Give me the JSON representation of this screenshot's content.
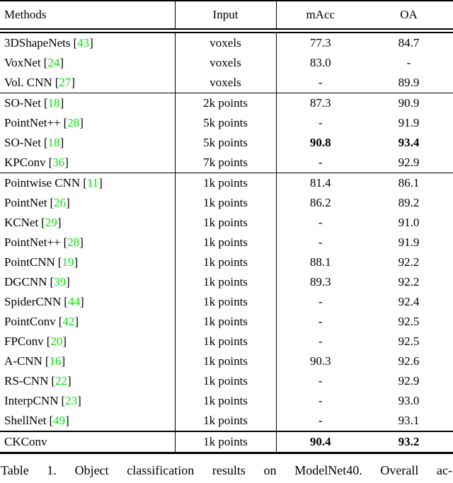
{
  "table": {
    "columns": [
      "Methods",
      "Input",
      "mAcc",
      "OA"
    ],
    "groups": [
      {
        "rows": [
          {
            "method": "3DShapeNets",
            "cite": "43",
            "input": "voxels",
            "macc": "77.3",
            "oa": "84.7",
            "bold_macc": false,
            "bold_oa": false
          },
          {
            "method": "VoxNet",
            "cite": "24",
            "input": "voxels",
            "macc": "83.0",
            "oa": "-",
            "bold_macc": false,
            "bold_oa": false
          },
          {
            "method": "Vol. CNN",
            "cite": "27",
            "input": "voxels",
            "macc": "-",
            "oa": "89.9",
            "bold_macc": false,
            "bold_oa": false
          }
        ]
      },
      {
        "rows": [
          {
            "method": "SO-Net",
            "cite": "18",
            "input": "2k points",
            "macc": "87.3",
            "oa": "90.9",
            "bold_macc": false,
            "bold_oa": false
          },
          {
            "method": "PointNet++",
            "cite": "28",
            "input": "5k points",
            "macc": "-",
            "oa": "91.9",
            "bold_macc": false,
            "bold_oa": false
          },
          {
            "method": "SO-Net",
            "cite": "18",
            "input": "5k points",
            "macc": "90.8",
            "oa": "93.4",
            "bold_macc": true,
            "bold_oa": true
          },
          {
            "method": "KPConv",
            "cite": "36",
            "input": "7k points",
            "macc": "-",
            "oa": "92.9",
            "bold_macc": false,
            "bold_oa": false
          }
        ]
      },
      {
        "rows": [
          {
            "method": "Pointwise CNN",
            "cite": "11",
            "input": "1k points",
            "macc": "81.4",
            "oa": "86.1",
            "bold_macc": false,
            "bold_oa": false
          },
          {
            "method": "PointNet",
            "cite": "26",
            "input": "1k points",
            "macc": "86.2",
            "oa": "89.2",
            "bold_macc": false,
            "bold_oa": false
          },
          {
            "method": "KCNet",
            "cite": "29",
            "input": "1k points",
            "macc": "-",
            "oa": "91.0",
            "bold_macc": false,
            "bold_oa": false
          },
          {
            "method": "PointNet++",
            "cite": "28",
            "input": "1k points",
            "macc": "-",
            "oa": "91.9",
            "bold_macc": false,
            "bold_oa": false
          },
          {
            "method": "PointCNN",
            "cite": "19",
            "input": "1k points",
            "macc": "88.1",
            "oa": "92.2",
            "bold_macc": false,
            "bold_oa": false
          },
          {
            "method": "DGCNN",
            "cite": "39",
            "input": "1k points",
            "macc": "89.3",
            "oa": "92.2",
            "bold_macc": false,
            "bold_oa": false
          },
          {
            "method": "SpiderCNN",
            "cite": "44",
            "input": "1k points",
            "macc": "-",
            "oa": "92.4",
            "bold_macc": false,
            "bold_oa": false
          },
          {
            "method": "PointConv",
            "cite": "42",
            "input": "1k points",
            "macc": "-",
            "oa": "92.5",
            "bold_macc": false,
            "bold_oa": false
          },
          {
            "method": "FPConv",
            "cite": "20",
            "input": "1k points",
            "macc": "-",
            "oa": "92.5",
            "bold_macc": false,
            "bold_oa": false
          },
          {
            "method": "A-CNN",
            "cite": "16",
            "input": "1k points",
            "macc": "90.3",
            "oa": "92.6",
            "bold_macc": false,
            "bold_oa": false
          },
          {
            "method": "RS-CNN",
            "cite": "22",
            "input": "1k points",
            "macc": "-",
            "oa": "92.9",
            "bold_macc": false,
            "bold_oa": false
          },
          {
            "method": "InterpCNN",
            "cite": "23",
            "input": "1k points",
            "macc": "-",
            "oa": "93.0",
            "bold_macc": false,
            "bold_oa": false
          },
          {
            "method": "ShellNet",
            "cite": "49",
            "input": "1k points",
            "macc": "-",
            "oa": "93.1",
            "bold_macc": false,
            "bold_oa": false
          }
        ]
      },
      {
        "final": true,
        "rows": [
          {
            "method": "CKConv",
            "cite": "",
            "input": "1k points",
            "macc": "90.4",
            "oa": "93.2",
            "bold_macc": true,
            "bold_oa": true
          }
        ]
      }
    ]
  },
  "caption": "Table 1. Object classification results on ModelNet40. Overall ac-",
  "colors": {
    "citation_green": "#00E600",
    "text": "#000000",
    "background": "#FFFFFF"
  }
}
